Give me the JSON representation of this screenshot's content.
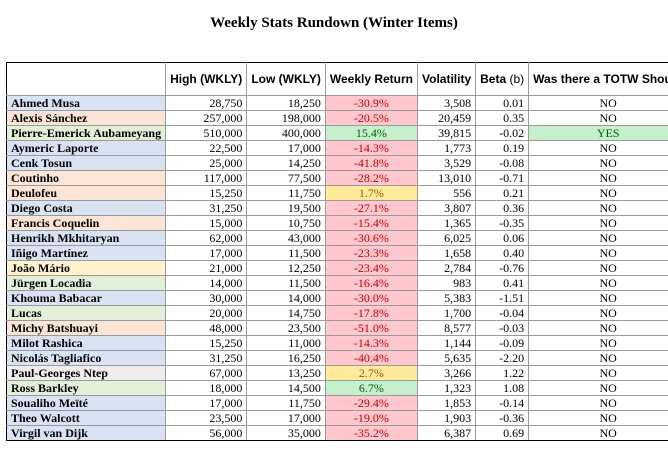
{
  "title": "Weekly Stats Rundown (Winter Items)",
  "headers": {
    "name": "",
    "high": "High (WKLY)",
    "low": "Low (WKLY)",
    "ret": "Weekly Return",
    "vol": "Volatility",
    "beta": "Beta",
    "beta_suffix": "(b)",
    "shout": "Was there a TOTW Shout?"
  },
  "colors": {
    "name_blue": "#dae3f3",
    "name_orange": "#fbe5d6",
    "name_green": "#e2f0d9",
    "name_yellow": "#fff2cc",
    "name_grey": "#ededed",
    "ret_red": "#ffc7ce",
    "ret_red_text": "#c00000",
    "ret_green": "#c6efce",
    "ret_green_text": "#006100",
    "ret_yellow": "#ffeb9c",
    "ret_yellow_text": "#9c5700"
  },
  "rows": [
    {
      "name": "Ahmed Musa",
      "high": "28,750",
      "low": "18,250",
      "ret": "-30.9%",
      "vol": "3,508",
      "beta": "0.01",
      "shout": "NO",
      "name_color": "blue",
      "ret_color": "red"
    },
    {
      "name": "Alexis Sánchez",
      "high": "257,000",
      "low": "198,000",
      "ret": "-20.5%",
      "vol": "20,459",
      "beta": "0.35",
      "shout": "NO",
      "name_color": "orange",
      "ret_color": "red"
    },
    {
      "name": "Pierre-Emerick Aubameyang",
      "high": "510,000",
      "low": "400,000",
      "ret": "15.4%",
      "vol": "39,815",
      "beta": "-0.02",
      "shout": "YES",
      "name_color": "green",
      "ret_color": "green"
    },
    {
      "name": "Aymeric Laporte",
      "high": "22,500",
      "low": "17,000",
      "ret": "-14.3%",
      "vol": "1,773",
      "beta": "0.19",
      "shout": "NO",
      "name_color": "blue",
      "ret_color": "red"
    },
    {
      "name": "Cenk Tosun",
      "high": "25,000",
      "low": "14,250",
      "ret": "-41.8%",
      "vol": "3,529",
      "beta": "-0.08",
      "shout": "NO",
      "name_color": "blue",
      "ret_color": "red"
    },
    {
      "name": "Coutinho",
      "high": "117,000",
      "low": "77,500",
      "ret": "-28.2%",
      "vol": "13,010",
      "beta": "-0.71",
      "shout": "NO",
      "name_color": "orange",
      "ret_color": "red"
    },
    {
      "name": "Deulofeu",
      "high": "15,250",
      "low": "11,750",
      "ret": "1.7%",
      "vol": "556",
      "beta": "0.21",
      "shout": "NO",
      "name_color": "orange",
      "ret_color": "yellow"
    },
    {
      "name": "Diego Costa",
      "high": "31,250",
      "low": "19,500",
      "ret": "-27.1%",
      "vol": "3,807",
      "beta": "0.36",
      "shout": "NO",
      "name_color": "blue",
      "ret_color": "red"
    },
    {
      "name": "Francis Coquelin",
      "high": "15,000",
      "low": "10,750",
      "ret": "-15.4%",
      "vol": "1,365",
      "beta": "-0.35",
      "shout": "NO",
      "name_color": "orange",
      "ret_color": "red"
    },
    {
      "name": "Henrikh Mkhitaryan",
      "high": "62,000",
      "low": "43,000",
      "ret": "-30.6%",
      "vol": "6,025",
      "beta": "0.06",
      "shout": "NO",
      "name_color": "blue",
      "ret_color": "red"
    },
    {
      "name": "Iñigo Martínez",
      "high": "17,000",
      "low": "11,500",
      "ret": "-23.3%",
      "vol": "1,658",
      "beta": "0.40",
      "shout": "NO",
      "name_color": "blue",
      "ret_color": "red"
    },
    {
      "name": "João Mário",
      "high": "21,000",
      "low": "12,250",
      "ret": "-23.4%",
      "vol": "2,784",
      "beta": "-0.76",
      "shout": "NO",
      "name_color": "yellow",
      "ret_color": "red"
    },
    {
      "name": "Jürgen Locadia",
      "high": "14,000",
      "low": "11,500",
      "ret": "-16.4%",
      "vol": "983",
      "beta": "0.41",
      "shout": "NO",
      "name_color": "green",
      "ret_color": "red"
    },
    {
      "name": "Khouma Babacar",
      "high": "30,000",
      "low": "14,000",
      "ret": "-30.0%",
      "vol": "5,383",
      "beta": "-1.51",
      "shout": "NO",
      "name_color": "blue",
      "ret_color": "red"
    },
    {
      "name": "Lucas",
      "high": "20,000",
      "low": "14,750",
      "ret": "-17.8%",
      "vol": "1,700",
      "beta": "-0.04",
      "shout": "NO",
      "name_color": "green",
      "ret_color": "red"
    },
    {
      "name": "Michy Batshuayi",
      "high": "48,000",
      "low": "23,500",
      "ret": "-51.0%",
      "vol": "8,577",
      "beta": "-0.03",
      "shout": "NO",
      "name_color": "orange",
      "ret_color": "red"
    },
    {
      "name": "Milot Rashica",
      "high": "15,250",
      "low": "11,000",
      "ret": "-14.3%",
      "vol": "1,144",
      "beta": "-0.09",
      "shout": "NO",
      "name_color": "blue",
      "ret_color": "red"
    },
    {
      "name": "Nicolás Tagliafico",
      "high": "31,250",
      "low": "16,250",
      "ret": "-40.4%",
      "vol": "5,635",
      "beta": "-2.20",
      "shout": "NO",
      "name_color": "blue",
      "ret_color": "red"
    },
    {
      "name": "Paul-Georges Ntep",
      "high": "67,000",
      "low": "13,250",
      "ret": "2.7%",
      "vol": "3,266",
      "beta": "1.22",
      "shout": "NO",
      "name_color": "grey",
      "ret_color": "yellow"
    },
    {
      "name": "Ross Barkley",
      "high": "18,000",
      "low": "14,500",
      "ret": "6.7%",
      "vol": "1,323",
      "beta": "1.08",
      "shout": "NO",
      "name_color": "green",
      "ret_color": "green"
    },
    {
      "name": "Soualiho Meïté",
      "high": "17,000",
      "low": "11,750",
      "ret": "-29.4%",
      "vol": "1,853",
      "beta": "-0.14",
      "shout": "NO",
      "name_color": "blue",
      "ret_color": "red"
    },
    {
      "name": "Theo Walcott",
      "high": "23,500",
      "low": "17,000",
      "ret": "-19.0%",
      "vol": "1,903",
      "beta": "-0.36",
      "shout": "NO",
      "name_color": "blue",
      "ret_color": "red"
    },
    {
      "name": "Virgil van Dijk",
      "high": "56,000",
      "low": "35,000",
      "ret": "-35.2%",
      "vol": "6,387",
      "beta": "0.69",
      "shout": "NO",
      "name_color": "blue",
      "ret_color": "red"
    }
  ]
}
